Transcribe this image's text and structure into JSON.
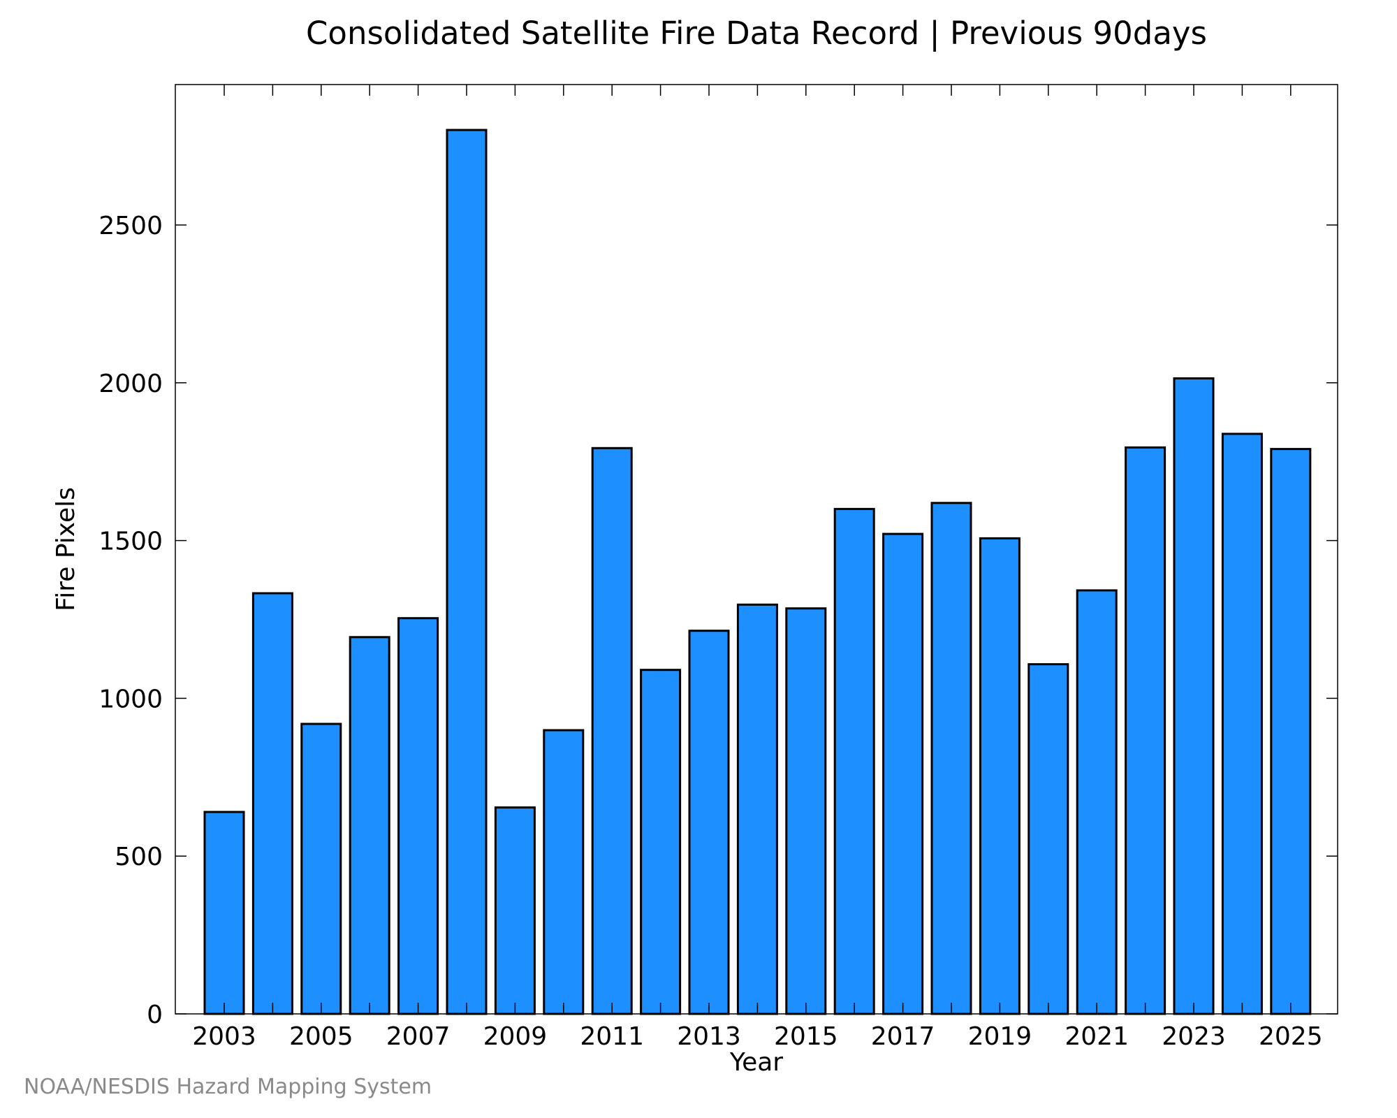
{
  "chart_data": {
    "type": "bar",
    "title": "Consolidated Satellite Fire Data Record | Previous 90days",
    "xlabel": "Year",
    "ylabel": "Fire Pixels",
    "categories": [
      "2003",
      "2004",
      "2005",
      "2006",
      "2007",
      "2008",
      "2009",
      "2010",
      "2011",
      "2012",
      "2013",
      "2014",
      "2015",
      "2016",
      "2017",
      "2018",
      "2019",
      "2020",
      "2021",
      "2022",
      "2023",
      "2024",
      "2025"
    ],
    "values": [
      640,
      1333,
      919,
      1194,
      1254,
      2801,
      654,
      899,
      1793,
      1090,
      1214,
      1297,
      1285,
      1600,
      1521,
      1619,
      1507,
      1108,
      1342,
      1795,
      2014,
      1838,
      1790
    ],
    "x_tick_labels": [
      "2003",
      "2005",
      "2007",
      "2009",
      "2011",
      "2013",
      "2015",
      "2017",
      "2019",
      "2021",
      "2023",
      "2025"
    ],
    "y_ticks": [
      0,
      500,
      1000,
      1500,
      2000,
      2500
    ],
    "ylim": [
      0,
      2945
    ],
    "grid": false,
    "colors": {
      "bar_fill": "#1e8fff",
      "bar_stroke": "#000000",
      "axis": "#000000"
    }
  },
  "footer": "NOAA/NESDIS Hazard Mapping System"
}
